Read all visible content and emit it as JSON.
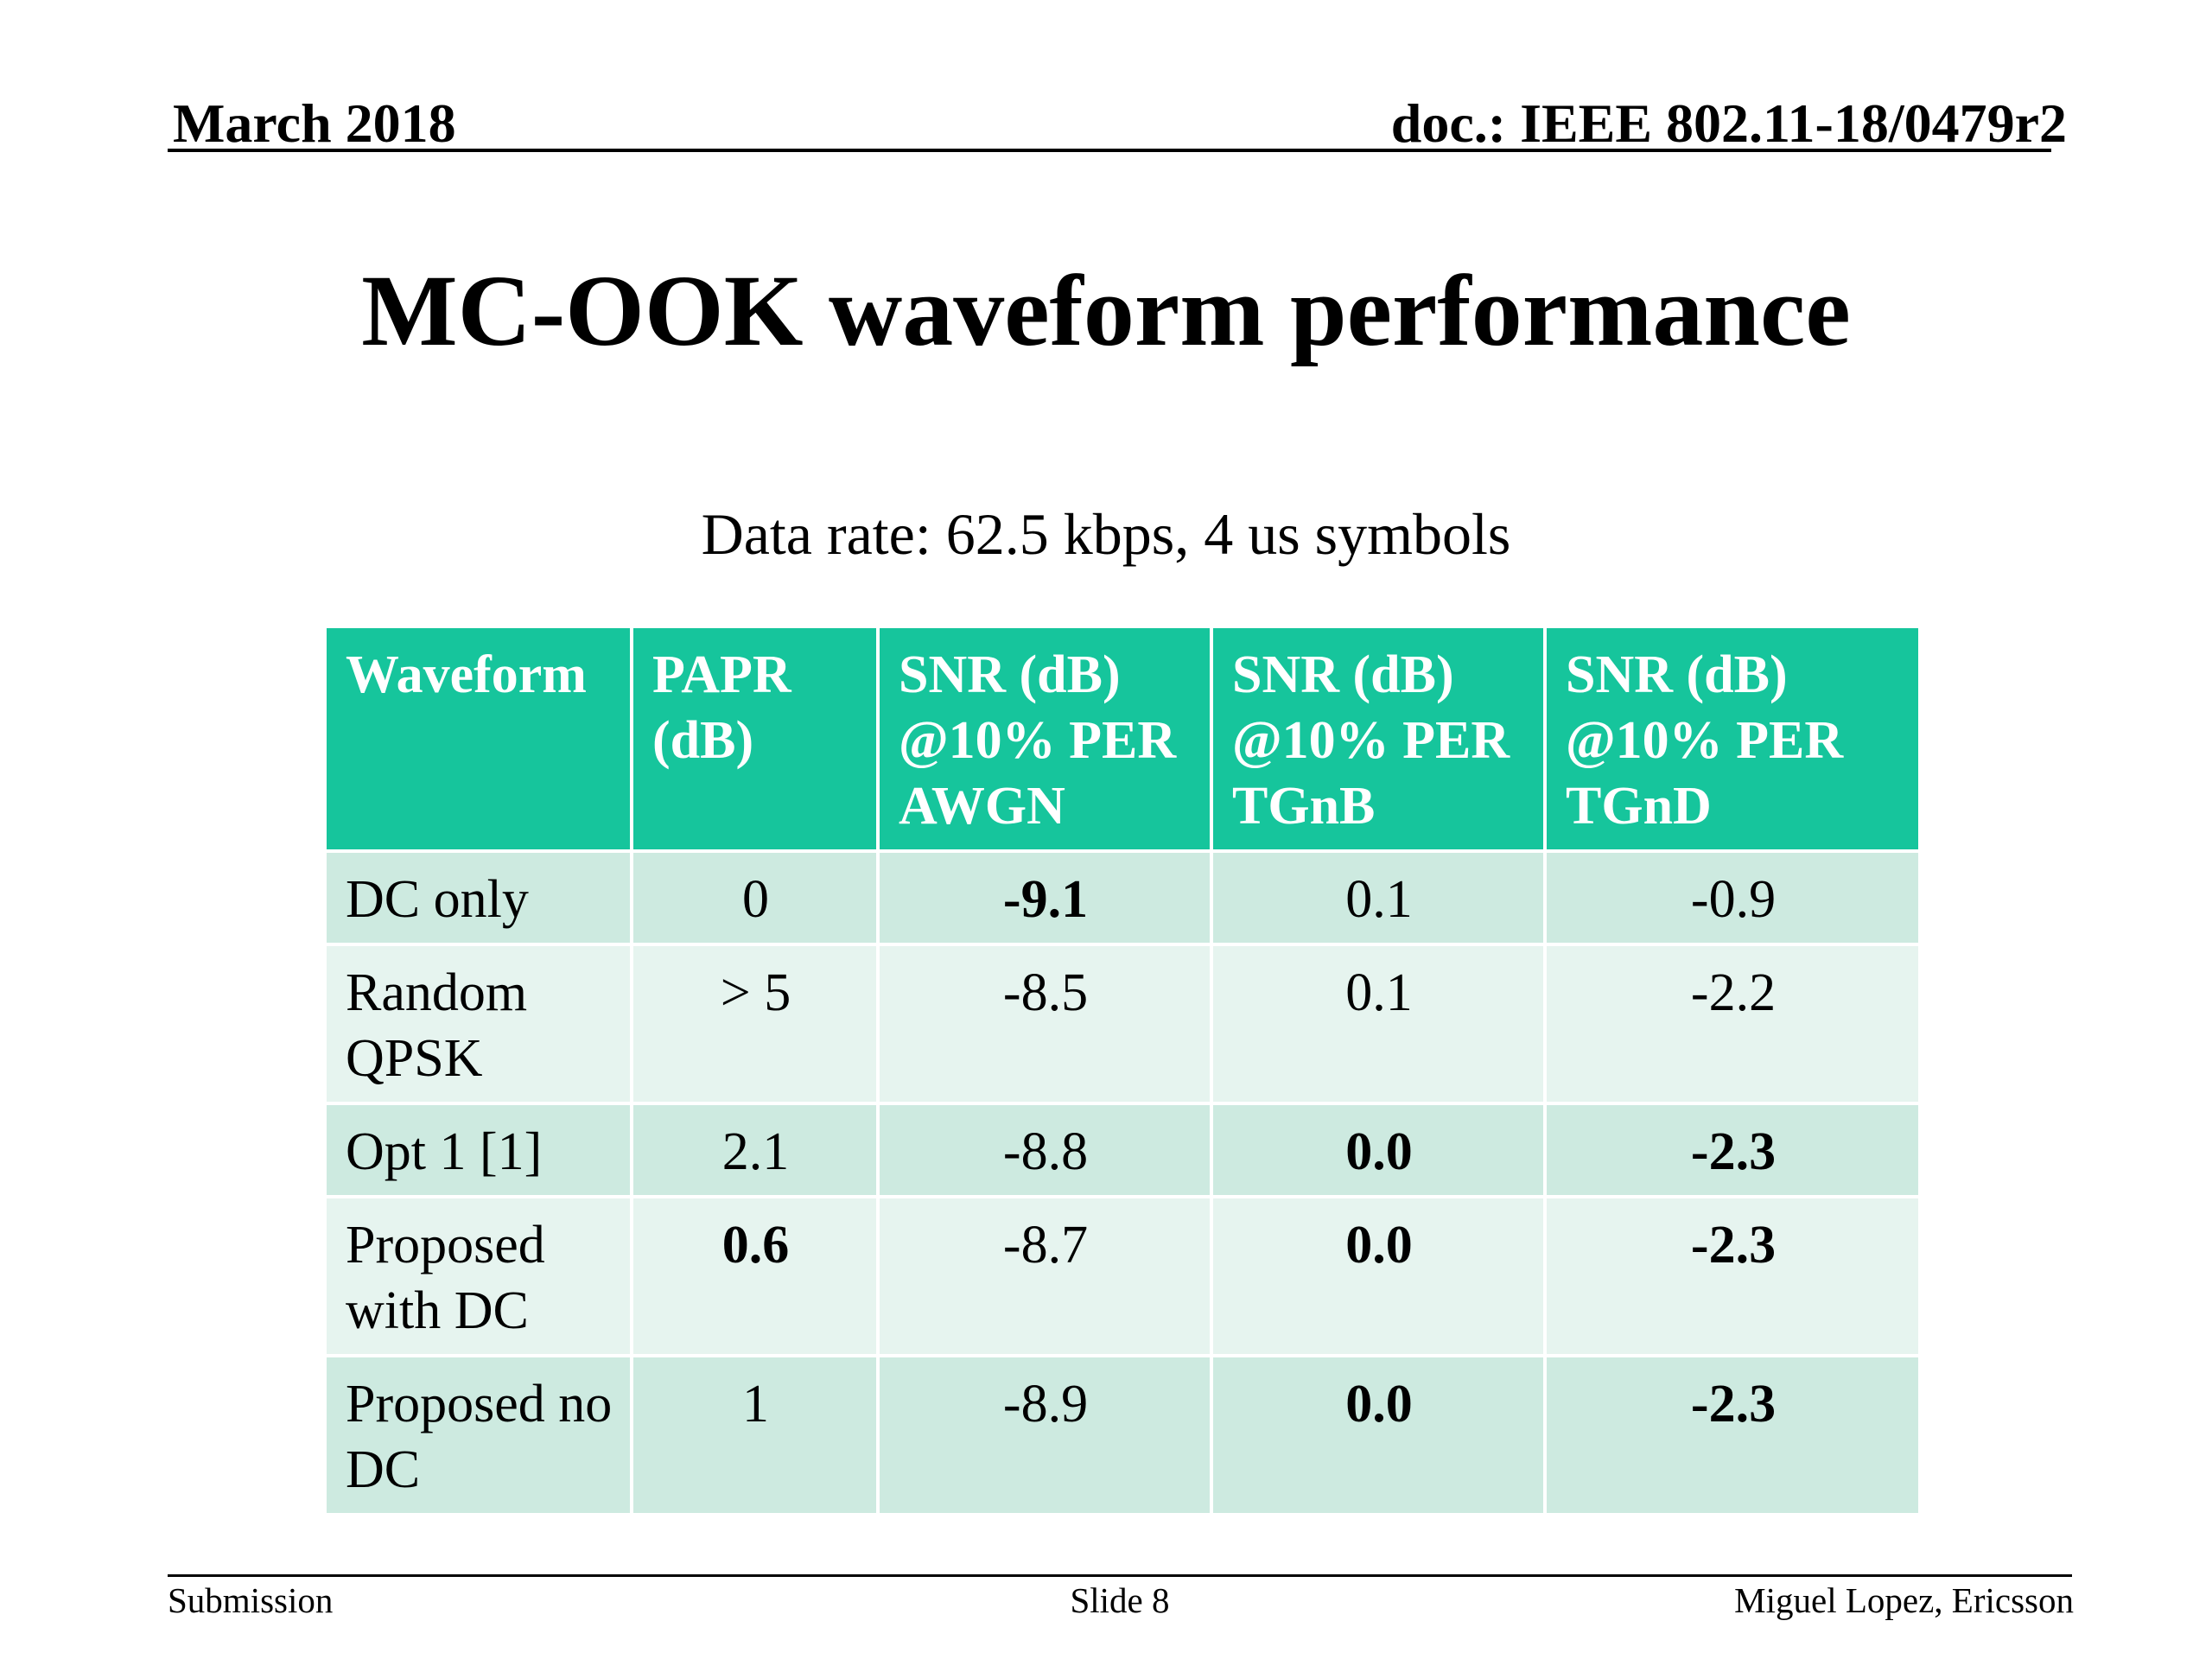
{
  "header": {
    "date": "March 2018",
    "doc": "doc.: IEEE 802.11-18/0479r2"
  },
  "title": "MC-OOK waveform performance",
  "subtitle": "Data rate: 62.5 kbps, 4 us symbols",
  "table": {
    "headers": [
      "Waveform",
      "PAPR (dB)",
      "SNR (dB) @10% PER AWGN",
      "SNR (dB) @10% PER TGnB",
      "SNR (dB) @10% PER TGnD"
    ],
    "rows": [
      {
        "waveform": "DC only",
        "papr": "0",
        "awgn": "-9.1",
        "tgnb": "0.1",
        "tgnd": "-0.9"
      },
      {
        "waveform": "Random QPSK",
        "papr": "> 5",
        "awgn": "-8.5",
        "tgnb": "0.1",
        "tgnd": "-2.2"
      },
      {
        "waveform": "Opt 1 [1]",
        "papr": "2.1",
        "awgn": "-8.8",
        "tgnb": "0.0",
        "tgnd": "-2.3"
      },
      {
        "waveform": "Proposed with DC",
        "papr": "0.6",
        "awgn": "-8.7",
        "tgnb": "0.0",
        "tgnd": "-2.3"
      },
      {
        "waveform": "Proposed no DC",
        "papr": "1",
        "awgn": "-8.9",
        "tgnb": "0.0",
        "tgnd": "-2.3"
      }
    ]
  },
  "colors": {
    "header_bg": "#16c59c",
    "row_dark": "#cdeae0",
    "row_light": "#e6f4ef"
  },
  "footer": {
    "left": "Submission",
    "center": "Slide 8",
    "right": "Miguel Lopez, Ericsson"
  }
}
